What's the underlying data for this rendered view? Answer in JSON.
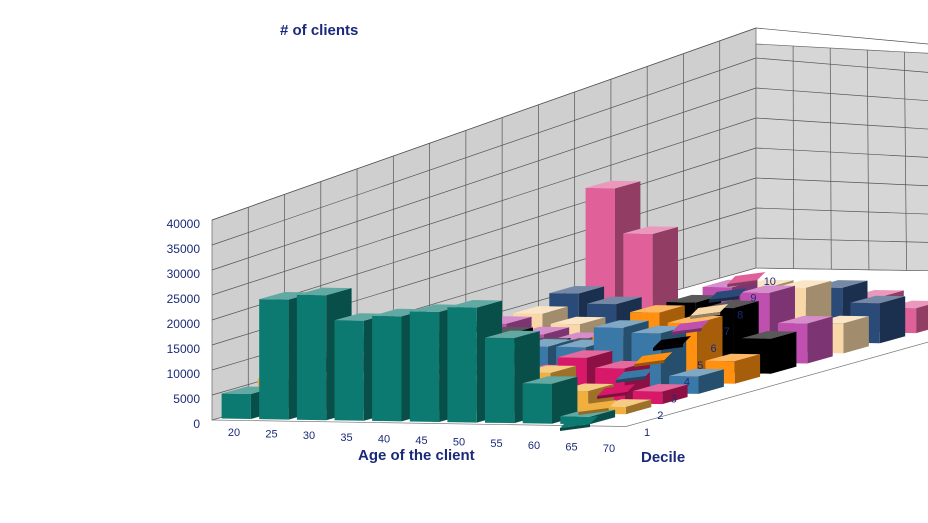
{
  "chart_data": {
    "type": "bar3d",
    "zlabel": "# of clients",
    "xlabel": "Age of the client",
    "ylabel": "Decile",
    "x_ticks": [
      "20",
      "25",
      "30",
      "35",
      "40",
      "45",
      "50",
      "55",
      "60",
      "65",
      "70"
    ],
    "y_ticks": [
      "1",
      "2",
      "3",
      "4",
      "5",
      "6",
      "7",
      "8",
      "9",
      "10"
    ],
    "z_ticks": [
      "0",
      "5000",
      "10000",
      "15000",
      "20000",
      "25000",
      "30000",
      "35000",
      "40000"
    ],
    "zlim": [
      0,
      40000
    ],
    "grid": true,
    "legend": "right side, along the decile axis",
    "series": [
      {
        "decile": "1",
        "color": "#0d7a72",
        "values": [
          5000,
          24000,
          25000,
          20000,
          21000,
          22000,
          23000,
          17000,
          8000,
          1500,
          0
        ]
      },
      {
        "decile": "2",
        "color": "#f0b040",
        "values": [
          6000,
          6000,
          6000,
          6000,
          6000,
          6000,
          7000,
          8000,
          4500,
          1500,
          0
        ]
      },
      {
        "decile": "3",
        "color": "#d81868",
        "values": [
          8000,
          8000,
          6000,
          6000,
          6000,
          6000,
          6000,
          9000,
          7000,
          2500,
          0
        ]
      },
      {
        "decile": "4",
        "color": "#3a78a8",
        "values": [
          10000,
          10000,
          8000,
          7000,
          8000,
          9000,
          9000,
          13000,
          12000,
          3500,
          0
        ]
      },
      {
        "decile": "5",
        "color": "#ff9010",
        "values": [
          0,
          9000,
          8000,
          6000,
          6000,
          6000,
          9000,
          14000,
          12000,
          4500,
          0
        ]
      },
      {
        "decile": "6",
        "color": "#000000",
        "values": [
          0,
          8000,
          7000,
          5000,
          5000,
          6000,
          10000,
          14000,
          13000,
          7000,
          0
        ]
      },
      {
        "decile": "7",
        "color": "#c050b0",
        "values": [
          0,
          7000,
          5000,
          4000,
          4000,
          5000,
          10000,
          15000,
          14000,
          8000,
          0
        ]
      },
      {
        "decile": "8",
        "color": "#f8d8a8",
        "values": [
          0,
          7000,
          5000,
          3000,
          3000,
          4000,
          7000,
          13000,
          13000,
          6000,
          0
        ]
      },
      {
        "decile": "9",
        "color": "#2a4a78",
        "values": [
          0,
          9000,
          7000,
          3000,
          2000,
          2000,
          3000,
          7000,
          11000,
          8000,
          0
        ]
      },
      {
        "decile": "10",
        "color": "#e0609a",
        "values": [
          0,
          28000,
          19000,
          2000,
          1000,
          1000,
          1000,
          3000,
          7000,
          5000,
          0
        ]
      }
    ]
  }
}
